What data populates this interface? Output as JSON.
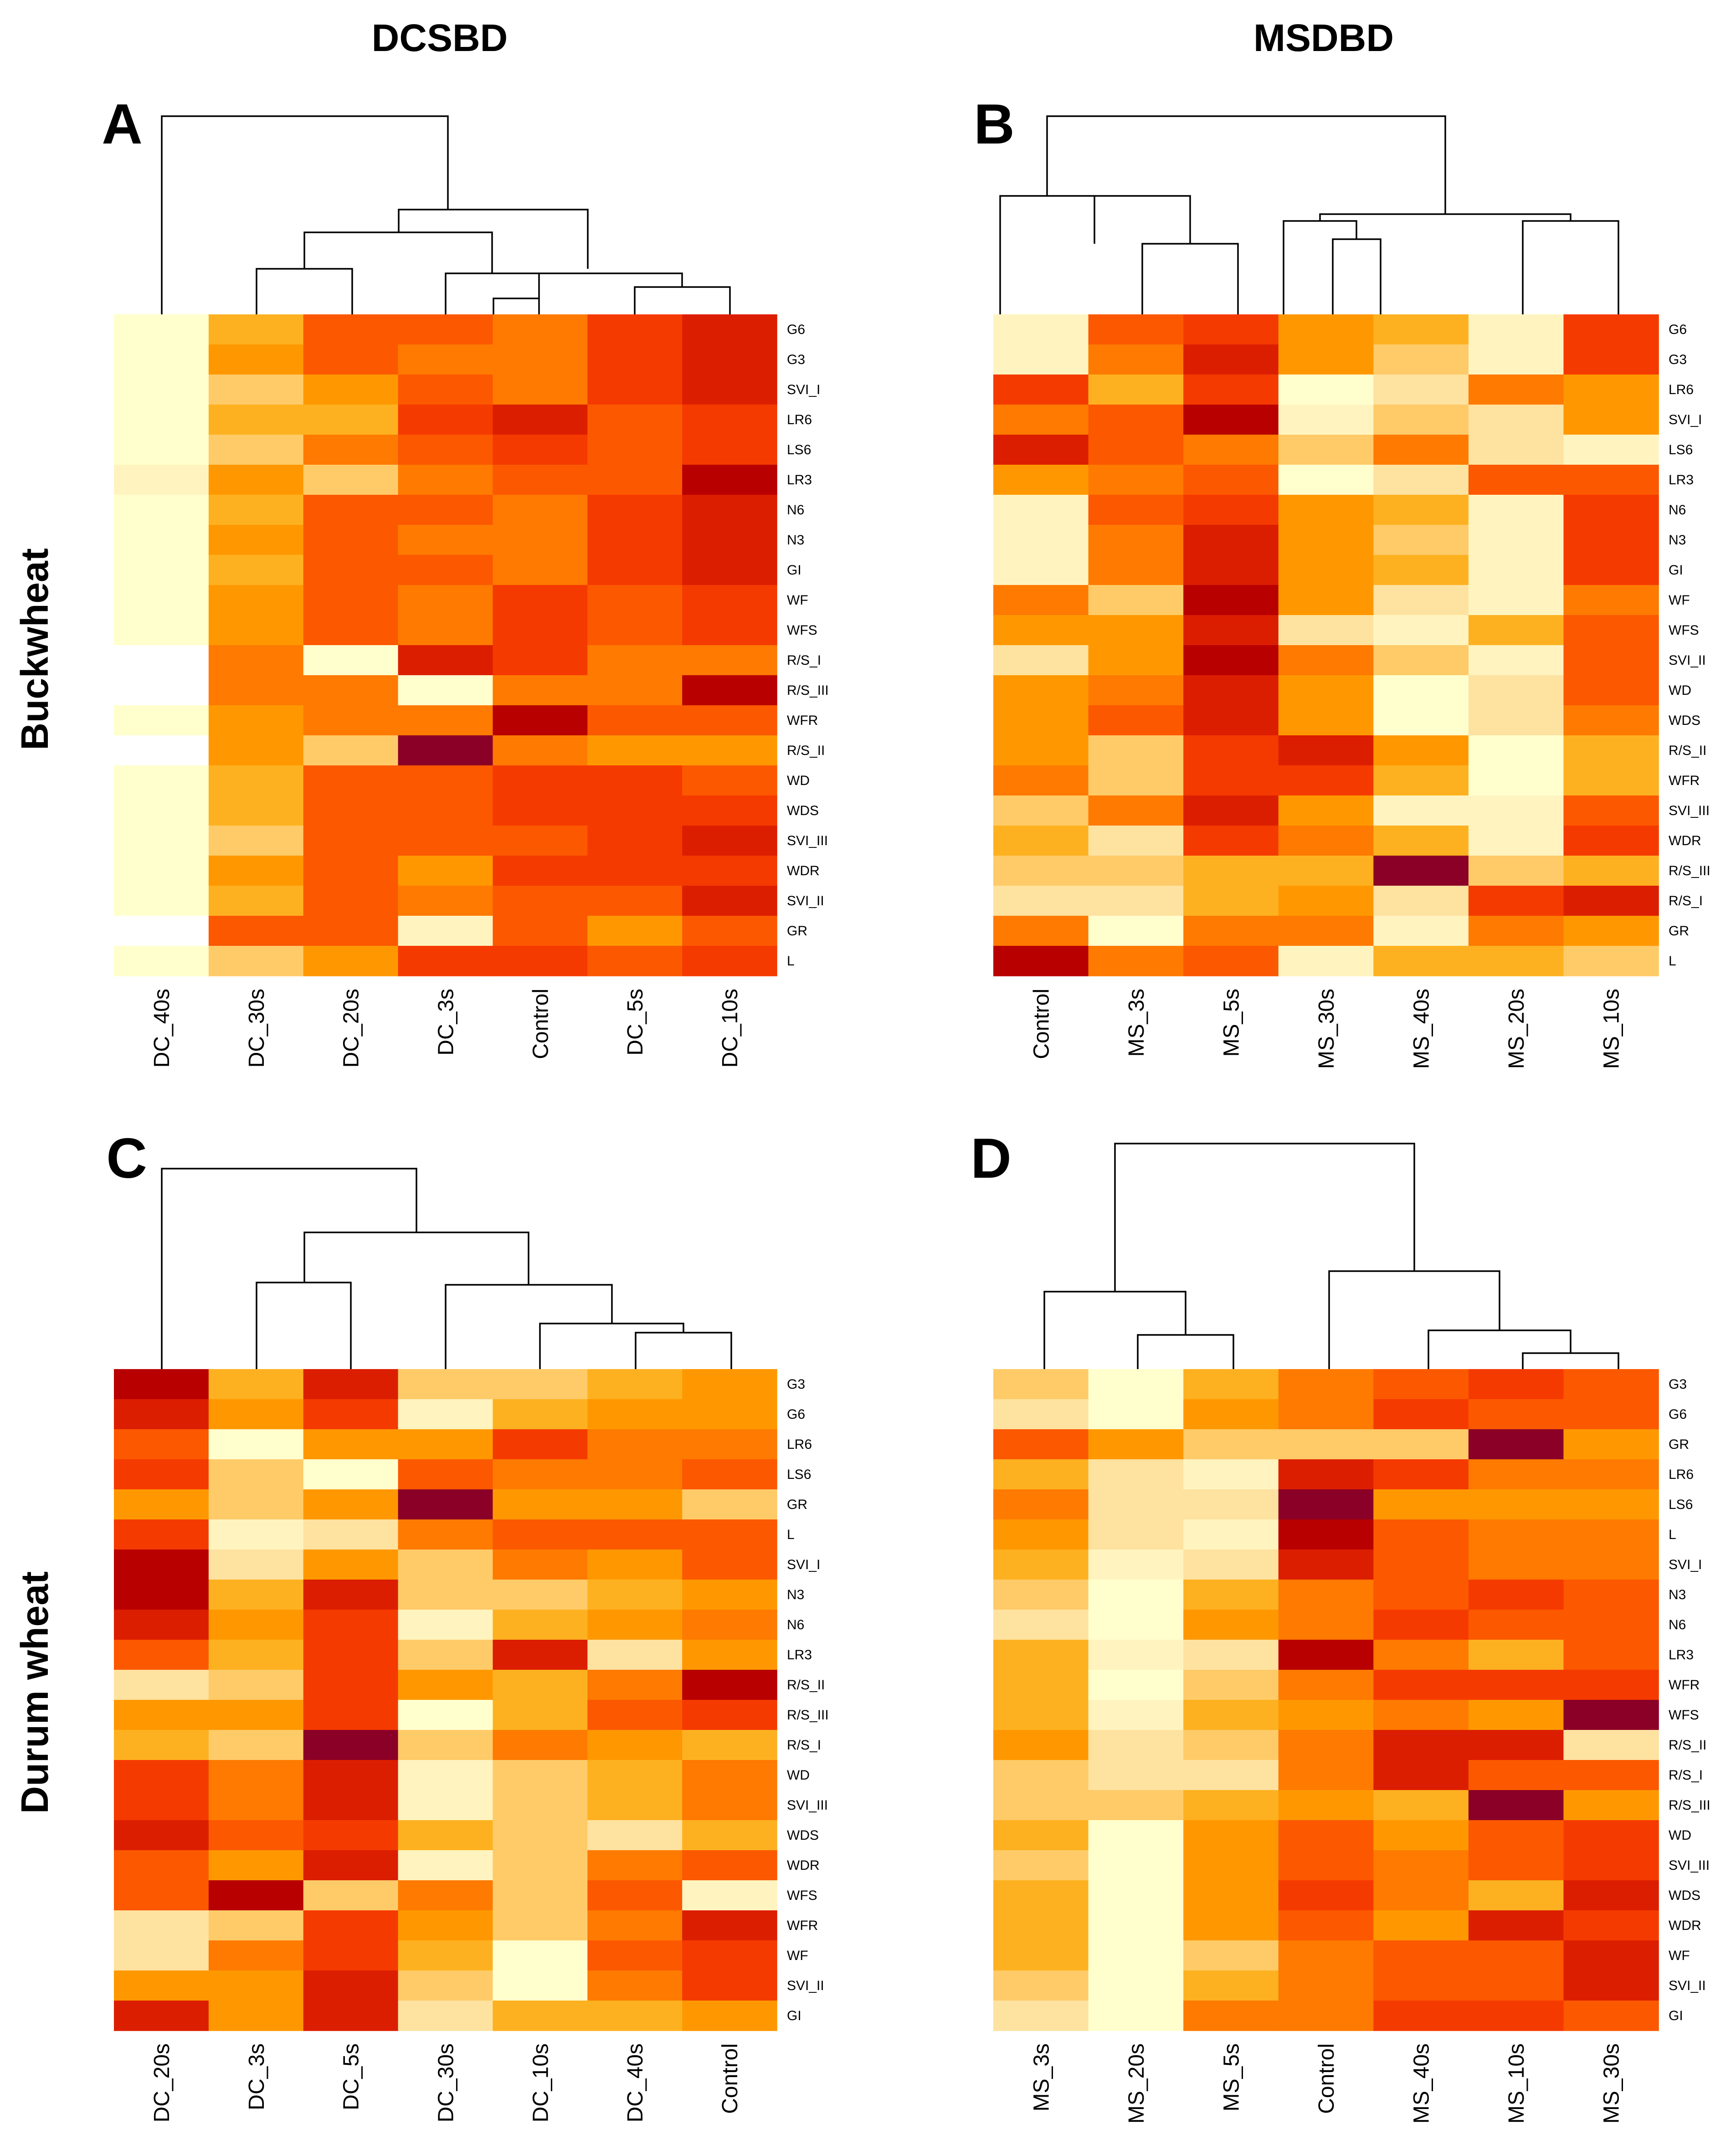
{
  "figure": {
    "column_titles": [
      "DCSBD",
      "MSDBD"
    ],
    "row_titles": [
      "Buckwheat",
      "Durum wheat"
    ],
    "color_scale": [
      "#8b0026",
      "#b90000",
      "#dc1e00",
      "#f53a00",
      "#fc5800",
      "#fe7a00",
      "#ff9800",
      "#feb120",
      "#fecb68",
      "#fee2a0",
      "#fff4c0",
      "#ffffce",
      "#ffffff"
    ]
  },
  "chart_data": [
    {
      "type": "heatmap",
      "panel": "A",
      "title": "DCSBD",
      "row_group": "Buckwheat",
      "columns": [
        "DC_40s",
        "DC_30s",
        "DC_20s",
        "DC_3s",
        "Control",
        "DC_5s",
        "DC_10s"
      ],
      "rows": [
        "G6",
        "G3",
        "SVI_I",
        "LR6",
        "LS6",
        "LR3",
        "N6",
        "N3",
        "GI",
        "WF",
        "WFS",
        "R/S_I",
        "R/S_III",
        "WFR",
        "R/S_II",
        "WD",
        "WDS",
        "SVI_III",
        "WDR",
        "SVI_II",
        "GR",
        "L"
      ],
      "values": [
        [
          11,
          7,
          4,
          4,
          5,
          3,
          2
        ],
        [
          11,
          6,
          4,
          5,
          5,
          3,
          2
        ],
        [
          11,
          8,
          6,
          4,
          5,
          3,
          2
        ],
        [
          11,
          7,
          7,
          3,
          2,
          4,
          3
        ],
        [
          11,
          8,
          5,
          4,
          3,
          4,
          3
        ],
        [
          10,
          6,
          8,
          5,
          4,
          4,
          1
        ],
        [
          11,
          7,
          4,
          4,
          5,
          3,
          2
        ],
        [
          11,
          6,
          4,
          5,
          5,
          3,
          2
        ],
        [
          11,
          7,
          4,
          4,
          5,
          3,
          2
        ],
        [
          11,
          6,
          4,
          5,
          3,
          4,
          3
        ],
        [
          11,
          6,
          4,
          5,
          3,
          4,
          3
        ],
        [
          12,
          5,
          11,
          2,
          3,
          5,
          5
        ],
        [
          12,
          5,
          5,
          11,
          5,
          5,
          1
        ],
        [
          11,
          6,
          5,
          5,
          1,
          4,
          4
        ],
        [
          12,
          6,
          8,
          0,
          5,
          6,
          6
        ],
        [
          11,
          7,
          4,
          4,
          3,
          3,
          4
        ],
        [
          11,
          7,
          4,
          4,
          3,
          3,
          3
        ],
        [
          11,
          8,
          4,
          4,
          4,
          3,
          2
        ],
        [
          11,
          6,
          4,
          6,
          3,
          3,
          3
        ],
        [
          11,
          7,
          4,
          5,
          4,
          4,
          2
        ],
        [
          12,
          4,
          4,
          10,
          4,
          6,
          4
        ],
        [
          11,
          8,
          6,
          3,
          3,
          4,
          3
        ]
      ]
    },
    {
      "type": "heatmap",
      "panel": "B",
      "title": "MSDBD",
      "row_group": "Buckwheat",
      "columns": [
        "Control",
        "MS_3s",
        "MS_5s",
        "MS_30s",
        "MS_40s",
        "MS_20s",
        "MS_10s"
      ],
      "rows": [
        "G6",
        "G3",
        "LR6",
        "SVI_I",
        "LS6",
        "LR3",
        "N6",
        "N3",
        "GI",
        "WF",
        "WFS",
        "SVI_II",
        "WD",
        "WDS",
        "R/S_II",
        "WFR",
        "SVI_III",
        "WDR",
        "R/S_III",
        "R/S_I",
        "GR",
        "L"
      ],
      "values": [
        [
          10,
          4,
          3,
          6,
          7,
          10,
          3
        ],
        [
          10,
          5,
          2,
          6,
          8,
          10,
          3
        ],
        [
          3,
          7,
          3,
          11,
          9,
          5,
          6
        ],
        [
          5,
          4,
          1,
          10,
          8,
          9,
          6
        ],
        [
          2,
          4,
          5,
          8,
          5,
          9,
          10
        ],
        [
          6,
          5,
          4,
          11,
          9,
          4,
          4
        ],
        [
          10,
          4,
          3,
          6,
          7,
          10,
          3
        ],
        [
          10,
          5,
          2,
          6,
          8,
          10,
          3
        ],
        [
          10,
          5,
          2,
          6,
          7,
          10,
          3
        ],
        [
          5,
          8,
          1,
          6,
          9,
          10,
          5
        ],
        [
          6,
          6,
          2,
          9,
          10,
          7,
          4
        ],
        [
          9,
          6,
          1,
          5,
          8,
          10,
          4
        ],
        [
          6,
          5,
          2,
          6,
          11,
          9,
          4
        ],
        [
          6,
          4,
          2,
          6,
          11,
          9,
          5
        ],
        [
          6,
          8,
          3,
          2,
          6,
          11,
          7
        ],
        [
          5,
          8,
          3,
          3,
          7,
          11,
          7
        ],
        [
          8,
          5,
          2,
          6,
          10,
          10,
          4
        ],
        [
          7,
          9,
          3,
          5,
          7,
          10,
          3
        ],
        [
          8,
          8,
          7,
          7,
          0,
          8,
          7
        ],
        [
          9,
          9,
          7,
          6,
          9,
          3,
          2
        ],
        [
          5,
          11,
          5,
          5,
          10,
          5,
          6
        ],
        [
          1,
          5,
          4,
          10,
          7,
          7,
          8
        ]
      ]
    },
    {
      "type": "heatmap",
      "panel": "C",
      "title": "DCSBD",
      "row_group": "Durum wheat",
      "columns": [
        "DC_20s",
        "DC_3s",
        "DC_5s",
        "DC_30s",
        "DC_10s",
        "DC_40s",
        "Control"
      ],
      "rows": [
        "G3",
        "G6",
        "LR6",
        "LS6",
        "GR",
        "L",
        "SVI_I",
        "N3",
        "N6",
        "LR3",
        "R/S_II",
        "R/S_III",
        "R/S_I",
        "WD",
        "SVI_III",
        "WDS",
        "WDR",
        "WFS",
        "WFR",
        "WF",
        "SVI_II",
        "GI"
      ],
      "values": [
        [
          1,
          7,
          2,
          8,
          8,
          7,
          6
        ],
        [
          2,
          6,
          3,
          10,
          7,
          6,
          6
        ],
        [
          4,
          11,
          6,
          6,
          3,
          5,
          5
        ],
        [
          3,
          8,
          11,
          4,
          5,
          5,
          4
        ],
        [
          6,
          8,
          6,
          0,
          6,
          6,
          8
        ],
        [
          3,
          10,
          9,
          5,
          4,
          4,
          4
        ],
        [
          1,
          9,
          6,
          8,
          5,
          6,
          4
        ],
        [
          1,
          7,
          2,
          8,
          8,
          7,
          6
        ],
        [
          2,
          6,
          3,
          10,
          7,
          6,
          5
        ],
        [
          4,
          7,
          3,
          8,
          2,
          9,
          6
        ],
        [
          9,
          8,
          3,
          6,
          7,
          5,
          1
        ],
        [
          6,
          6,
          3,
          11,
          7,
          4,
          3
        ],
        [
          7,
          8,
          0,
          8,
          5,
          6,
          7
        ],
        [
          3,
          5,
          2,
          10,
          8,
          7,
          5
        ],
        [
          3,
          5,
          2,
          10,
          8,
          7,
          5
        ],
        [
          2,
          4,
          3,
          7,
          8,
          9,
          7
        ],
        [
          4,
          6,
          2,
          10,
          8,
          5,
          4
        ],
        [
          4,
          1,
          8,
          5,
          8,
          4,
          10
        ],
        [
          9,
          8,
          3,
          6,
          8,
          5,
          2
        ],
        [
          9,
          5,
          3,
          7,
          11,
          4,
          3
        ],
        [
          6,
          6,
          2,
          8,
          11,
          5,
          3
        ],
        [
          2,
          6,
          2,
          9,
          7,
          7,
          6
        ]
      ]
    },
    {
      "type": "heatmap",
      "panel": "D",
      "title": "MSDBD",
      "row_group": "Durum wheat",
      "columns": [
        "MS_3s",
        "MS_20s",
        "MS_5s",
        "Control",
        "MS_40s",
        "MS_10s",
        "MS_30s"
      ],
      "rows": [
        "G3",
        "G6",
        "GR",
        "LR6",
        "LS6",
        "L",
        "SVI_I",
        "N3",
        "N6",
        "LR3",
        "WFR",
        "WFS",
        "R/S_II",
        "R/S_I",
        "R/S_III",
        "WD",
        "SVI_III",
        "WDS",
        "WDR",
        "WF",
        "SVI_II",
        "GI"
      ],
      "values": [
        [
          8,
          11,
          7,
          5,
          4,
          3,
          4
        ],
        [
          9,
          11,
          6,
          5,
          3,
          4,
          4
        ],
        [
          4,
          6,
          8,
          8,
          8,
          0,
          6
        ],
        [
          7,
          9,
          10,
          2,
          3,
          5,
          5
        ],
        [
          5,
          9,
          9,
          0,
          6,
          6,
          6
        ],
        [
          6,
          9,
          10,
          1,
          4,
          5,
          5
        ],
        [
          7,
          10,
          9,
          2,
          4,
          5,
          5
        ],
        [
          8,
          11,
          7,
          5,
          4,
          3,
          4
        ],
        [
          9,
          11,
          6,
          5,
          3,
          4,
          4
        ],
        [
          7,
          10,
          9,
          1,
          5,
          7,
          4
        ],
        [
          7,
          11,
          8,
          5,
          3,
          3,
          3
        ],
        [
          7,
          10,
          7,
          6,
          5,
          6,
          0
        ],
        [
          6,
          9,
          8,
          5,
          2,
          2,
          9
        ],
        [
          8,
          9,
          9,
          5,
          2,
          4,
          4
        ],
        [
          8,
          8,
          7,
          6,
          7,
          0,
          6
        ],
        [
          7,
          11,
          6,
          4,
          6,
          4,
          3
        ],
        [
          8,
          11,
          6,
          4,
          5,
          4,
          3
        ],
        [
          7,
          11,
          6,
          3,
          5,
          7,
          2
        ],
        [
          7,
          11,
          6,
          4,
          6,
          2,
          3
        ],
        [
          7,
          11,
          8,
          5,
          4,
          4,
          2
        ],
        [
          8,
          11,
          7,
          5,
          4,
          4,
          2
        ],
        [
          9,
          11,
          5,
          5,
          3,
          3,
          4
        ]
      ]
    }
  ]
}
